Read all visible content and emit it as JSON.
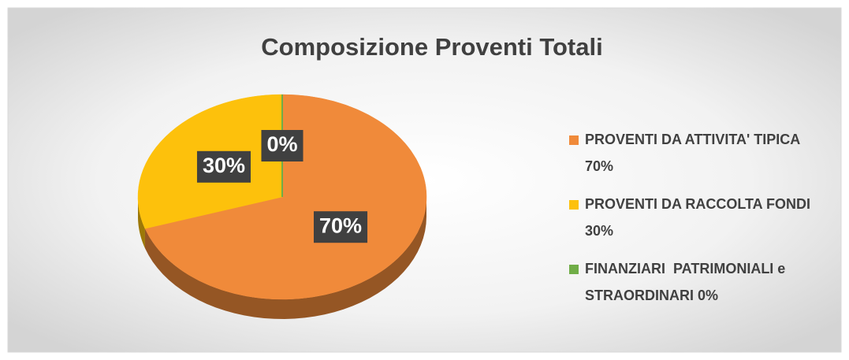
{
  "chart_data": {
    "type": "pie",
    "title": "Composizione Proventi Totali",
    "categories": [
      "PROVENTI DA ATTIVITA' TIPICA 70%",
      "PROVENTI DA RACCOLTA FONDI 30%",
      "FINANZIARI  PATRIMONIALI e STRAORDINARI 0%"
    ],
    "values": [
      70,
      30,
      0
    ],
    "value_labels": [
      "70%",
      "30%",
      "0%"
    ],
    "colors": [
      "#f08a3a",
      "#fdc10c",
      "#70ad47"
    ],
    "legend": "right"
  }
}
